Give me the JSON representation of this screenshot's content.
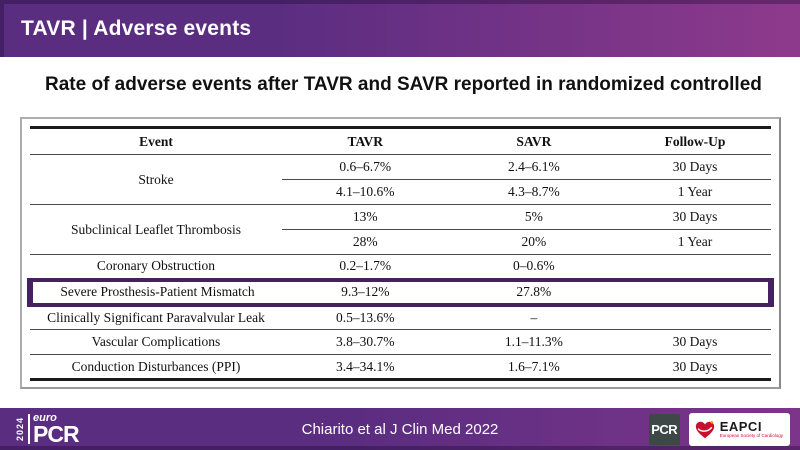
{
  "header": {
    "title": "TAVR | Adverse events"
  },
  "main": {
    "title": "Rate of adverse events after TAVR and SAVR reported in randomized controlled"
  },
  "table": {
    "columns": [
      "Event",
      "TAVR",
      "SAVR",
      "Follow-Up"
    ],
    "rows": [
      {
        "event": "Stroke",
        "rowspan": 2,
        "tavr": "0.6–6.7%",
        "savr": "2.4–6.1%",
        "followup": "30 Days"
      },
      {
        "sub": true,
        "tavr": "4.1–10.6%",
        "savr": "4.3–8.7%",
        "followup": "1 Year"
      },
      {
        "event": "Subclinical Leaflet Thrombosis",
        "rowspan": 2,
        "tavr": "13%",
        "savr": "5%",
        "followup": "30 Days"
      },
      {
        "sub": true,
        "tavr": "28%",
        "savr": "20%",
        "followup": "1 Year"
      },
      {
        "event": "Coronary Obstruction",
        "tavr": "0.2–1.7%",
        "savr": "0–0.6%",
        "followup": ""
      },
      {
        "event": "Severe Prosthesis-Patient Mismatch",
        "tavr": "9.3–12%",
        "savr": "27.8%",
        "followup": "",
        "highlighted": true
      },
      {
        "event": "Clinically Significant Paravalvular Leak",
        "tavr": "0.5–13.6%",
        "savr": "–",
        "followup": ""
      },
      {
        "event": "Vascular Complications",
        "tavr": "3.8–30.7%",
        "savr": "1.1–11.3%",
        "followup": "30 Days"
      },
      {
        "event": "Conduction Disturbances (PPI)",
        "tavr": "3.4–34.1%",
        "savr": "1.6–7.1%",
        "followup": "30 Days"
      }
    ]
  },
  "footer": {
    "citation": "Chiarito et al J Clin Med 2022",
    "europcr_logo": {
      "year": "2024",
      "euro": "euro",
      "pcr": "PCR"
    },
    "pcr_logo": "PCR",
    "eapci_logo": {
      "name": "EAPCI",
      "tagline": "European Society of Cardiology"
    }
  },
  "colors": {
    "header_purple": "#5b2d81",
    "header_purple_right": "#8e3a8c",
    "highlight_purple": "#45215f",
    "footer_purple": "#5b2d81",
    "pcr_box": "#3e4847",
    "eapci_red": "#c8102e"
  }
}
